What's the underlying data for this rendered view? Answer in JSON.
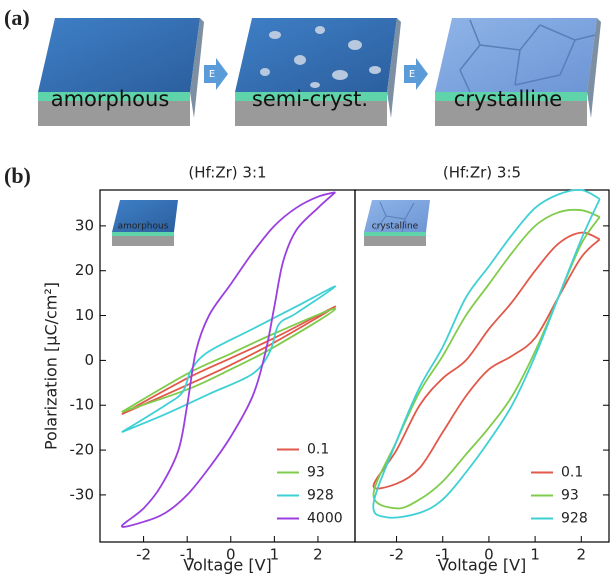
{
  "panel_labels": [
    "(a)",
    "(b)"
  ],
  "illustration": {
    "stages": [
      "amorphous",
      "semi-cryst.",
      "crystalline"
    ],
    "arrows": [
      "E",
      "E"
    ]
  },
  "chart_data": [
    {
      "type": "line",
      "title": "(Hf:Zr) 3:1",
      "xlabel": "Voltage [V]",
      "ylabel": "Polarization [μC/cm²]",
      "inset_label": "amorphous",
      "xlim": [
        -3.0,
        2.85
      ],
      "ylim": [
        -40.5,
        38
      ],
      "xticks": [
        -2,
        -1,
        0,
        1,
        2
      ],
      "yticks": [
        -30,
        -20,
        -10,
        0,
        10,
        20,
        30
      ],
      "legend": "lower right",
      "series": [
        {
          "name": "0.1",
          "color": "#e2584a",
          "x": [
            -2.5,
            -1,
            0,
            1,
            2.4,
            1,
            0,
            -1,
            -2.5
          ],
          "values": [
            -12,
            -5.5,
            -1,
            4,
            12,
            5,
            0.5,
            -4,
            -12
          ]
        },
        {
          "name": "93",
          "color": "#7fcc4a",
          "x": [
            -2.5,
            -1,
            0,
            1,
            2.4,
            1,
            0,
            -1,
            -2.5
          ],
          "values": [
            -11.5,
            -6.5,
            -2,
            3,
            11.5,
            6,
            1.5,
            -3,
            -11.5
          ]
        },
        {
          "name": "928",
          "color": "#3fd0d6",
          "x": [
            -2.5,
            -1.5,
            -0.5,
            0.5,
            0.9,
            1.1,
            1.5,
            2.4,
            1.5,
            0.5,
            -0.5,
            -0.9,
            -1.1,
            -1.5,
            -2.5
          ],
          "values": [
            -16,
            -12,
            -7.5,
            -3,
            2,
            8,
            10.5,
            16.5,
            12,
            7,
            2,
            -2,
            -7,
            -10,
            -16
          ]
        },
        {
          "name": "4000",
          "color": "#9b3fe0",
          "x": [
            2.4,
            2,
            1.5,
            1,
            0.5,
            0,
            -0.5,
            -0.8,
            -1,
            -1.2,
            -1.6,
            -2,
            -2.5,
            -2,
            -1.5,
            -1,
            -0.5,
            0,
            0.5,
            0.8,
            1,
            1.2,
            1.5,
            2,
            2.4
          ],
          "values": [
            37.5,
            36.5,
            34,
            30,
            24,
            17,
            10,
            2,
            -10,
            -20,
            -28,
            -33,
            -37,
            -36,
            -34,
            -30,
            -24,
            -17,
            -8,
            2,
            12,
            22,
            29,
            34,
            37.5
          ]
        }
      ]
    },
    {
      "type": "line",
      "title": "(Hf:Zr) 3:5",
      "xlabel": "Voltage [V]",
      "inset_label": "crystalline",
      "xlim": [
        -2.9,
        2.6
      ],
      "ylim": [
        -40.5,
        38
      ],
      "xticks": [
        -2,
        -1,
        0,
        1,
        2
      ],
      "yticks": [
        -30,
        -20,
        -10,
        0,
        10,
        20,
        30
      ],
      "legend": "lower right",
      "series": [
        {
          "name": "0.1",
          "color": "#e2584a",
          "x": [
            2.4,
            2,
            1.5,
            1,
            0.5,
            0,
            -0.5,
            -1,
            -1.5,
            -2,
            -2.5,
            -2,
            -1.5,
            -1,
            -0.5,
            0,
            0.5,
            1,
            1.5,
            2,
            2.4
          ],
          "values": [
            27,
            28.5,
            26,
            20,
            13,
            7,
            0,
            -4,
            -10,
            -20,
            -28,
            -27.5,
            -24,
            -16,
            -8,
            -2,
            1,
            5,
            14,
            23,
            27
          ]
        },
        {
          "name": "93",
          "color": "#7fcc4a",
          "x": [
            2.4,
            2,
            1.5,
            1,
            0.5,
            0,
            -0.5,
            -1,
            -1.5,
            -2,
            -2.5,
            -2,
            -1.5,
            -1,
            -0.5,
            0,
            0.5,
            1,
            1.5,
            2,
            2.4
          ],
          "values": [
            32,
            33.5,
            33,
            30,
            24,
            17,
            10,
            1,
            -7,
            -18,
            -30,
            -33,
            -31,
            -27,
            -21,
            -15,
            -8,
            2,
            14,
            26,
            32
          ]
        },
        {
          "name": "928",
          "color": "#3fd0d6",
          "x": [
            2.4,
            2,
            1.5,
            1,
            0.5,
            0,
            -0.5,
            -1,
            -1.5,
            -2,
            -2.5,
            -2.2,
            -1.5,
            -1,
            -0.5,
            0,
            0.5,
            1,
            1.5,
            2,
            2.4
          ],
          "values": [
            36,
            38,
            37,
            34,
            28,
            21,
            14,
            3,
            -6,
            -18,
            -32,
            -35,
            -34,
            -31,
            -25,
            -18,
            -10,
            1,
            14,
            27,
            36
          ]
        }
      ]
    }
  ]
}
